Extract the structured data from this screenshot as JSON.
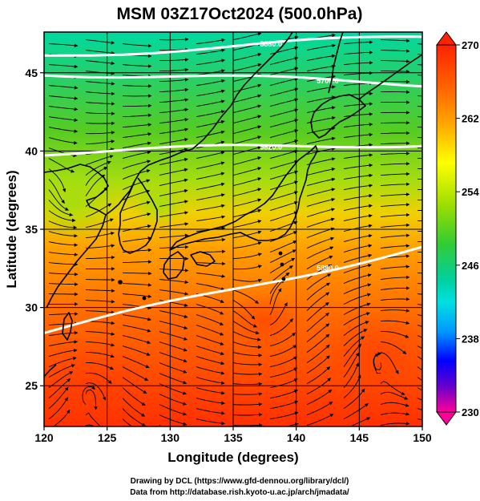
{
  "title": "MSM 03Z17Oct2024 (500.0hPa)",
  "map": {
    "x_axis": {
      "label": "Longitude (degrees)",
      "range": [
        120,
        150
      ],
      "ticks": [
        "120",
        "125",
        "130",
        "135",
        "140",
        "145",
        "150"
      ]
    },
    "y_axis": {
      "label": "Latitude  (degrees)",
      "range": [
        22.4,
        47.6
      ],
      "ticks": [
        "25",
        "30",
        "35",
        "40",
        "45"
      ]
    },
    "gridlines": true,
    "fields": [
      "temperature shading",
      "streamlines",
      "geopotential height contours",
      "coastlines"
    ],
    "contours": [
      {
        "label": "5880.0",
        "lat_at_120": 46.1,
        "lat_at_150": 47.3
      },
      {
        "label": "5700.0",
        "lat_at_120": 45.0,
        "lat_at_150": 44.3
      },
      {
        "label": "5820.0",
        "lat_at_120": 39.9,
        "lat_at_150": 40.5
      },
      {
        "label": "5880.0",
        "lat_at_120": 28.4,
        "lat_at_150": 33.9
      }
    ],
    "colorbar": {
      "min": 230,
      "max": 270,
      "ticks": [
        "270",
        "262",
        "254",
        "246",
        "238",
        "230"
      ],
      "colors": [
        "#ff0099",
        "#6600cc",
        "#0000ff",
        "#0099ff",
        "#00e0e0",
        "#00d0a0",
        "#33cc33",
        "#99dd00",
        "#ffff00",
        "#ffaa00",
        "#ff6600",
        "#ff2200"
      ]
    }
  },
  "credits": {
    "line1": "Drawing by DCL (https://www.gfd-dennou.org/library/dcl/)",
    "line2": "Data from http://database.rish.kyoto-u.ac.jp/arch/jmadata/"
  }
}
